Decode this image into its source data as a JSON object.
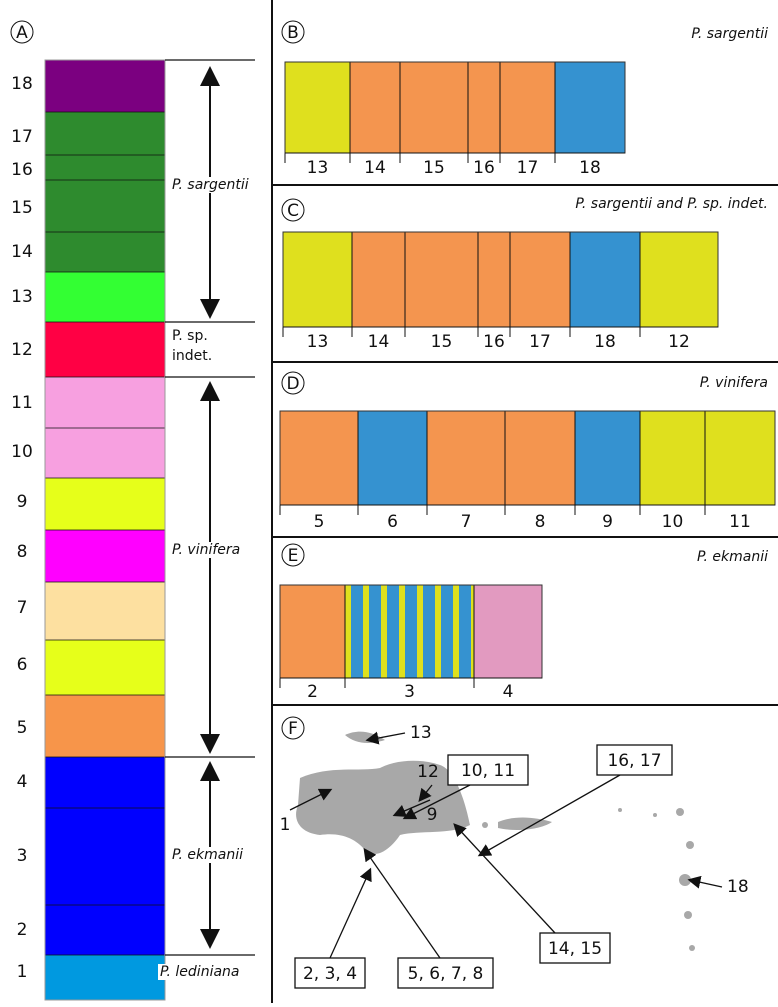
{
  "panels": {
    "A": {
      "label": "A",
      "populations": [
        18,
        17,
        16,
        15,
        14,
        13,
        12,
        11,
        10,
        9,
        8,
        7,
        6,
        5,
        4,
        3,
        2,
        1
      ],
      "species": [
        "P. sargentii",
        "P. sp.",
        "indet.",
        "P. vinifera",
        "P. ekmanii",
        "P. lediniana"
      ]
    },
    "B": {
      "label": "B",
      "title": "P. sargentii",
      "groups": [
        13,
        14,
        15,
        16,
        17,
        18
      ]
    },
    "C": {
      "label": "C",
      "title": "P. sargentii and P. sp. indet.",
      "groups": [
        13,
        14,
        15,
        16,
        17,
        18,
        12
      ]
    },
    "D": {
      "label": "D",
      "title": "P. vinifera",
      "groups": [
        5,
        6,
        7,
        8,
        9,
        10,
        11
      ]
    },
    "E": {
      "label": "E",
      "title": "P. ekmanii",
      "groups": [
        2,
        3,
        4
      ]
    },
    "F": {
      "label": "F",
      "sites": [
        "13",
        "12",
        "10, 11",
        "16, 17",
        "1",
        "9",
        "2, 3, 4",
        "5, 6, 7, 8",
        "14, 15",
        "18"
      ]
    }
  }
}
